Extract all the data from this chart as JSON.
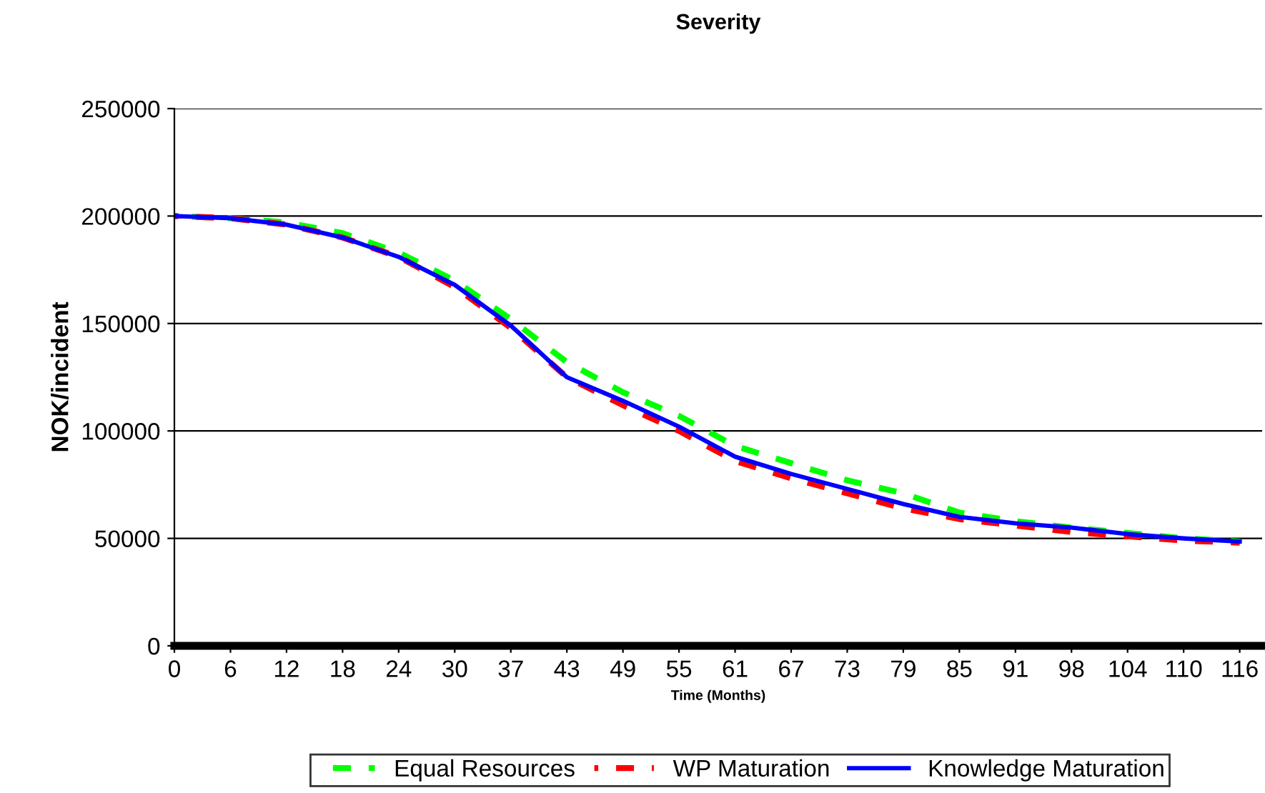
{
  "chart_data": {
    "type": "line",
    "title": "Severity",
    "xlabel": "Time (Months)",
    "ylabel": "NOK/incident",
    "categories": [
      "0",
      "6",
      "12",
      "18",
      "24",
      "30",
      "37",
      "43",
      "49",
      "55",
      "61",
      "67",
      "73",
      "79",
      "85",
      "91",
      "98",
      "104",
      "110",
      "116"
    ],
    "series": [
      {
        "name": "Equal Resources",
        "color": "#00ff00",
        "line_style": "dashed",
        "values": [
          200000,
          199000,
          197000,
          192000,
          183000,
          170000,
          152000,
          132000,
          118000,
          107000,
          93000,
          85000,
          77000,
          71000,
          62000,
          58000,
          55000,
          52500,
          50000,
          48500
        ]
      },
      {
        "name": "WP Maturation",
        "color": "#ff0000",
        "line_style": "dashed",
        "values": [
          200000,
          199000,
          196000,
          190000,
          181000,
          167000,
          148000,
          125000,
          112000,
          100000,
          86000,
          78000,
          71000,
          64000,
          59000,
          56000,
          53000,
          51000,
          49000,
          48000
        ]
      },
      {
        "name": "Knowledge Maturation",
        "color": "#0000ff",
        "line_style": "solid",
        "values": [
          200000,
          199000,
          196000,
          190000,
          181000,
          168000,
          149000,
          125000,
          114000,
          102000,
          88000,
          80000,
          73000,
          66000,
          60000,
          57000,
          55000,
          52000,
          50000,
          48500
        ]
      }
    ],
    "ylim": [
      0,
      250000
    ],
    "yticks": [
      0,
      50000,
      100000,
      150000,
      200000,
      250000
    ],
    "grid": "y",
    "legend": "bottom",
    "marker": "none"
  }
}
